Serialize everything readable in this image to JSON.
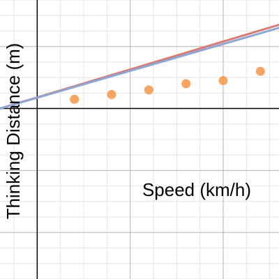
{
  "chart_data": {
    "type": "scatter",
    "xlabel": "Speed (km/h)",
    "ylabel": "Thinking Distance (m)",
    "grid": true,
    "xlim": [
      -8,
      52
    ],
    "ylim": [
      -55,
      35
    ],
    "series": [
      {
        "kind": "points",
        "color": "#f5a05a",
        "points": [
          [
            8,
            3
          ],
          [
            16,
            4.5
          ],
          [
            24,
            6
          ],
          [
            32,
            8
          ],
          [
            40,
            9
          ],
          [
            48,
            12
          ]
        ]
      },
      {
        "kind": "line",
        "color": "#d97a73",
        "points": [
          [
            -8,
            0
          ],
          [
            52,
            27
          ]
        ]
      },
      {
        "kind": "line",
        "color": "#8ca7d6",
        "points": [
          [
            -8,
            0
          ],
          [
            52,
            26
          ]
        ]
      }
    ]
  }
}
